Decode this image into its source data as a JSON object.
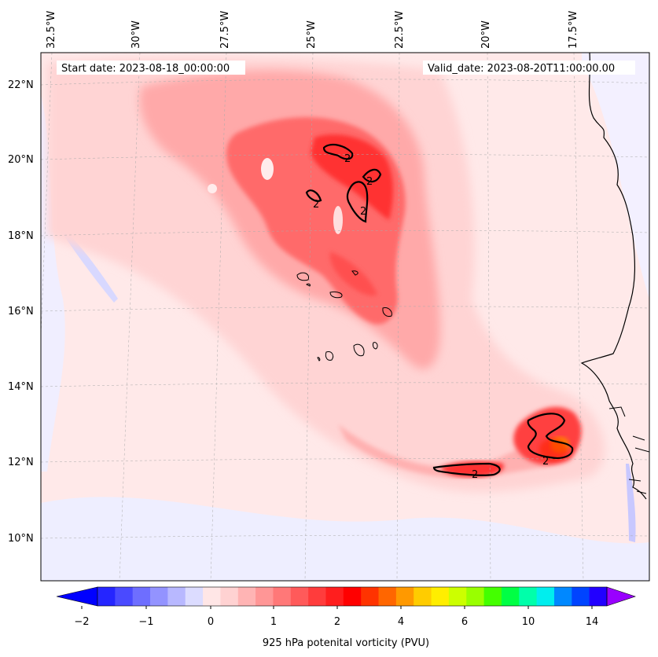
{
  "header": {
    "start_date": "Start date: 2023-08-18_00:00:00",
    "valid_date": "Valid_date: 2023-08-20T11:00:00.00"
  },
  "axes": {
    "lon_labels": [
      "32.5°W",
      "30°W",
      "27.5°W",
      "25°W",
      "22.5°W",
      "20°W",
      "17.5°W"
    ],
    "lat_labels": [
      "22°N",
      "20°N",
      "18°N",
      "16°N",
      "14°N",
      "12°N",
      "10°N"
    ]
  },
  "contours": {
    "labels": [
      "2",
      "2",
      "2",
      "2",
      "2",
      "2"
    ]
  },
  "colorbar": {
    "label": "925 hPa potenital vorticity (PVU)",
    "tick_labels": [
      "−2",
      "−1",
      "0",
      "1",
      "2",
      "4",
      "6",
      "10",
      "14"
    ],
    "colors": [
      "#0000ff",
      "#2525ff",
      "#4a4aff",
      "#6e6eff",
      "#9393ff",
      "#b8b8ff",
      "#dcdcff",
      "#ffe6e6",
      "#ffd2d2",
      "#ffb4b4",
      "#ff9696",
      "#ff7878",
      "#ff5a5a",
      "#ff3c3c",
      "#ff1e1e",
      "#ff0000",
      "#ff3300",
      "#ff6600",
      "#ff9900",
      "#ffcc00",
      "#ffee00",
      "#ccff00",
      "#99ff00",
      "#44ff00",
      "#00ff44",
      "#00ffaa",
      "#00eeee",
      "#0088ff",
      "#0044ff",
      "#2200ff",
      "#9900ff"
    ]
  },
  "colors": {
    "background_field": "#ffe9e9",
    "coast": "#000000"
  }
}
